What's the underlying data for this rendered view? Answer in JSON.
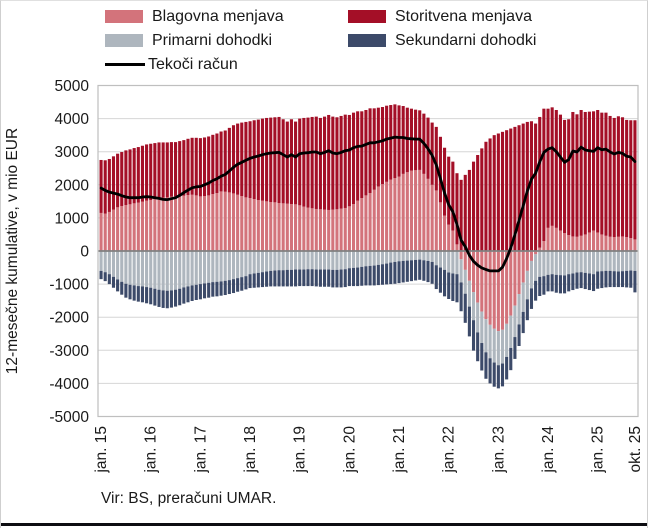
{
  "legend": {
    "items": [
      {
        "label": "Blagovna menjava",
        "color": "#D3737B",
        "swatch": "bar"
      },
      {
        "label": "Storitvena menjava",
        "color": "#A40F27",
        "swatch": "bar"
      },
      {
        "label": "Primarni dohodki",
        "color": "#AEB6BE",
        "swatch": "bar"
      },
      {
        "label": "Sekundarni dohodki",
        "color": "#3C4A69",
        "swatch": "bar"
      },
      {
        "label": "Tekoči račun",
        "color": "#000000",
        "swatch": "line"
      }
    ]
  },
  "axes": {
    "y_label": "12-mesečne kumulative, v mio EUR",
    "y_min": -5000,
    "y_max": 5000,
    "y_step": 1000,
    "x_ticks": [
      {
        "month": 0,
        "label": "jan. 15"
      },
      {
        "month": 12,
        "label": "jan. 16"
      },
      {
        "month": 24,
        "label": "jan. 17"
      },
      {
        "month": 36,
        "label": "jan. 18"
      },
      {
        "month": 48,
        "label": "jan. 19"
      },
      {
        "month": 60,
        "label": "jan. 20"
      },
      {
        "month": 72,
        "label": "jan. 21"
      },
      {
        "month": 84,
        "label": "jan. 22"
      },
      {
        "month": 96,
        "label": "jan. 23"
      },
      {
        "month": 108,
        "label": "jan. 24"
      },
      {
        "month": 120,
        "label": "jan. 25"
      },
      {
        "month": 129,
        "label": "okt. 25"
      }
    ]
  },
  "source": "Vir: BS, preračuni UMAR.",
  "chart_data": {
    "type": "bar",
    "subtype": "stacked-bars-with-line-overlay",
    "unit": "mio EUR",
    "frequency": "monthly",
    "start": "jan. 15",
    "end": "okt. 25",
    "n_points": 130,
    "ylim": [
      -5000,
      5000
    ],
    "grid": true,
    "legend_position": "top",
    "stacking_note": "positive values stack above zero, negative below zero, in series order",
    "series": [
      {
        "name": "Blagovna menjava",
        "color": "#D3737B",
        "values": [
          1150,
          1130,
          1180,
          1250,
          1320,
          1360,
          1390,
          1410,
          1440,
          1460,
          1490,
          1520,
          1540,
          1570,
          1600,
          1610,
          1620,
          1640,
          1650,
          1660,
          1670,
          1690,
          1700,
          1680,
          1650,
          1660,
          1680,
          1720,
          1750,
          1800,
          1790,
          1770,
          1740,
          1700,
          1660,
          1620,
          1600,
          1570,
          1540,
          1520,
          1500,
          1480,
          1470,
          1450,
          1440,
          1430,
          1420,
          1410,
          1380,
          1340,
          1310,
          1290,
          1270,
          1260,
          1250,
          1240,
          1250,
          1260,
          1280,
          1300,
          1350,
          1420,
          1520,
          1600,
          1680,
          1750,
          1850,
          1950,
          2020,
          2090,
          2160,
          2200,
          2250,
          2330,
          2380,
          2430,
          2440,
          2450,
          2330,
          2180,
          2000,
          1830,
          1470,
          1070,
          800,
          620,
          200,
          -250,
          -570,
          -900,
          -1240,
          -1560,
          -1830,
          -2060,
          -2230,
          -2350,
          -2420,
          -2380,
          -2200,
          -1950,
          -1650,
          -1300,
          -950,
          -600,
          -300,
          -100,
          100,
          300,
          700,
          760,
          700,
          620,
          540,
          480,
          440,
          430,
          460,
          500,
          560,
          620,
          560,
          500,
          460,
          430,
          420,
          430,
          440,
          420,
          390,
          350
        ]
      },
      {
        "name": "Storitvena menjava",
        "color": "#A40F27",
        "values": [
          1600,
          1610,
          1600,
          1610,
          1620,
          1630,
          1650,
          1660,
          1670,
          1680,
          1690,
          1700,
          1700,
          1690,
          1680,
          1670,
          1660,
          1650,
          1640,
          1660,
          1680,
          1700,
          1720,
          1740,
          1760,
          1770,
          1780,
          1790,
          1800,
          1810,
          1850,
          1950,
          2060,
          2150,
          2220,
          2280,
          2320,
          2380,
          2430,
          2480,
          2520,
          2550,
          2570,
          2600,
          2540,
          2480,
          2560,
          2500,
          2620,
          2680,
          2720,
          2760,
          2790,
          2760,
          2810,
          2870,
          2810,
          2780,
          2800,
          2820,
          2760,
          2760,
          2700,
          2620,
          2580,
          2560,
          2460,
          2380,
          2330,
          2300,
          2250,
          2230,
          2150,
          2050,
          1950,
          1870,
          1830,
          1800,
          1820,
          1850,
          1880,
          1920,
          1980,
          2050,
          2050,
          2080,
          2150,
          2150,
          2300,
          2450,
          2700,
          2900,
          3100,
          3300,
          3400,
          3500,
          3550,
          3600,
          3650,
          3700,
          3750,
          3800,
          3850,
          3900,
          3920,
          3850,
          3950,
          4000,
          3600,
          3580,
          3560,
          3500,
          3420,
          3500,
          3760,
          3700,
          3800,
          3700,
          3650,
          3600,
          3700,
          3680,
          3720,
          3650,
          3600,
          3640,
          3600,
          3540,
          3560,
          3600
        ]
      },
      {
        "name": "Primarni dohodki",
        "color": "#AEB6BE",
        "values": [
          -600,
          -640,
          -700,
          -780,
          -860,
          -930,
          -990,
          -1020,
          -1040,
          -1060,
          -1070,
          -1090,
          -1110,
          -1140,
          -1170,
          -1190,
          -1200,
          -1190,
          -1170,
          -1140,
          -1100,
          -1070,
          -1040,
          -1020,
          -1000,
          -980,
          -960,
          -940,
          -930,
          -920,
          -900,
          -880,
          -850,
          -820,
          -790,
          -760,
          -700,
          -680,
          -660,
          -640,
          -620,
          -600,
          -590,
          -580,
          -580,
          -570,
          -570,
          -560,
          -560,
          -560,
          -550,
          -550,
          -560,
          -560,
          -560,
          -560,
          -570,
          -570,
          -560,
          -550,
          -520,
          -510,
          -500,
          -480,
          -460,
          -450,
          -440,
          -420,
          -400,
          -380,
          -350,
          -330,
          -310,
          -300,
          -290,
          -280,
          -270,
          -260,
          -280,
          -300,
          -330,
          -430,
          -500,
          -570,
          -650,
          -680,
          -700,
          -700,
          -720,
          -780,
          -850,
          -900,
          -950,
          -1000,
          -1010,
          -1020,
          -1030,
          -1020,
          -1000,
          -980,
          -950,
          -920,
          -890,
          -860,
          -830,
          -800,
          -780,
          -760,
          -720,
          -700,
          -720,
          -730,
          -740,
          -700,
          -680,
          -650,
          -640,
          -660,
          -680,
          -700,
          -620,
          -610,
          -600,
          -600,
          -610,
          -620,
          -610,
          -600,
          -590,
          -600
        ]
      },
      {
        "name": "Sekundarni dohodki",
        "color": "#3C4A69",
        "values": [
          -250,
          -270,
          -300,
          -330,
          -360,
          -390,
          -420,
          -440,
          -460,
          -470,
          -480,
          -490,
          -500,
          -510,
          -520,
          -530,
          -530,
          -520,
          -510,
          -500,
          -490,
          -480,
          -470,
          -460,
          -460,
          -450,
          -450,
          -440,
          -440,
          -430,
          -430,
          -420,
          -420,
          -410,
          -410,
          -400,
          -420,
          -430,
          -440,
          -450,
          -460,
          -470,
          -480,
          -490,
          -490,
          -500,
          -500,
          -510,
          -500,
          -500,
          -510,
          -510,
          -510,
          -520,
          -520,
          -520,
          -530,
          -530,
          -540,
          -540,
          -540,
          -550,
          -560,
          -570,
          -580,
          -590,
          -600,
          -610,
          -620,
          -630,
          -650,
          -660,
          -660,
          -650,
          -640,
          -630,
          -620,
          -610,
          -620,
          -640,
          -660,
          -720,
          -760,
          -800,
          -800,
          -830,
          -850,
          -870,
          -880,
          -900,
          -920,
          -870,
          -830,
          -800,
          -760,
          -730,
          -700,
          -690,
          -680,
          -670,
          -660,
          -650,
          -640,
          -630,
          -620,
          -600,
          -580,
          -560,
          -500,
          -520,
          -540,
          -550,
          -540,
          -520,
          -500,
          -490,
          -480,
          -490,
          -500,
          -510,
          -520,
          -510,
          -500,
          -490,
          -480,
          -470,
          -480,
          -500,
          -520,
          -650
        ]
      }
    ],
    "line": {
      "name": "Tekoči račun",
      "color": "#000000",
      "values": [
        1900,
        1830,
        1780,
        1750,
        1720,
        1670,
        1630,
        1610,
        1610,
        1610,
        1630,
        1640,
        1630,
        1610,
        1590,
        1560,
        1550,
        1580,
        1610,
        1680,
        1760,
        1840,
        1910,
        1940,
        1950,
        2000,
        2050,
        2130,
        2180,
        2260,
        2310,
        2420,
        2530,
        2620,
        2680,
        2740,
        2800,
        2840,
        2870,
        2910,
        2940,
        2960,
        2970,
        2980,
        2910,
        2840,
        2910,
        2840,
        2940,
        2960,
        2970,
        2990,
        2990,
        2940,
        2980,
        3030,
        2960,
        2940,
        2980,
        3030,
        3050,
        3120,
        3160,
        3170,
        3220,
        3270,
        3270,
        3300,
        3330,
        3380,
        3410,
        3440,
        3430,
        3430,
        3400,
        3390,
        3380,
        3380,
        3250,
        3090,
        2890,
        2600,
        2190,
        1750,
        1400,
        1190,
        800,
        330,
        130,
        -130,
        -310,
        -430,
        -510,
        -560,
        -600,
        -600,
        -600,
        -490,
        -230,
        100,
        490,
        930,
        1370,
        1810,
        2170,
        2350,
        2690,
        2980,
        3080,
        3120,
        3000,
        2840,
        2680,
        2760,
        3020,
        2990,
        3140,
        3050,
        3030,
        3010,
        3120,
        3060,
        3080,
        2990,
        2930,
        2980,
        2950,
        2860,
        2840,
        2700
      ]
    }
  }
}
